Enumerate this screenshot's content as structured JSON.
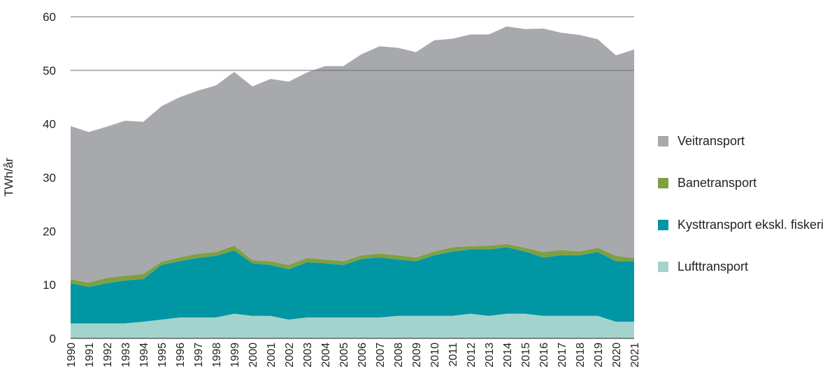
{
  "chart_data": {
    "type": "area",
    "stacked": true,
    "title": "",
    "xlabel": "",
    "ylabel": "TWh/år",
    "ylim": [
      0,
      60
    ],
    "yticks": [
      0,
      10,
      20,
      30,
      40,
      50,
      60
    ],
    "grid": "horizontal at 50 and 60 above the areas",
    "legend_position": "right",
    "x": [
      "1990",
      "1991",
      "1992",
      "1993",
      "1994",
      "1995",
      "1996",
      "1997",
      "1998",
      "1999",
      "2000",
      "2001",
      "2002",
      "2003",
      "2004",
      "2005",
      "2006",
      "2007",
      "2008",
      "2009",
      "2010",
      "2011",
      "2012",
      "2013",
      "2014",
      "2015",
      "2016",
      "2017",
      "2018",
      "2019",
      "2020",
      "2021"
    ],
    "series": [
      {
        "name": "Lufttransport",
        "color": "#a3d3cd",
        "values": [
          2.8,
          2.8,
          2.8,
          2.8,
          3.1,
          3.5,
          3.9,
          3.9,
          3.9,
          4.6,
          4.2,
          4.2,
          3.5,
          3.9,
          3.9,
          3.9,
          3.9,
          3.9,
          4.2,
          4.2,
          4.2,
          4.2,
          4.6,
          4.2,
          4.6,
          4.6,
          4.2,
          4.2,
          4.2,
          4.2,
          3.1,
          3.1
        ]
      },
      {
        "name": "Kysttransport ekskl. fiskeri",
        "color": "#0096a4",
        "values": [
          7.5,
          6.8,
          7.5,
          8.0,
          8.0,
          10.2,
          10.5,
          11.1,
          11.5,
          11.8,
          9.8,
          9.5,
          9.4,
          10.3,
          10.1,
          9.8,
          10.9,
          11.2,
          10.5,
          10.2,
          11.3,
          12.0,
          12.0,
          12.4,
          12.4,
          11.6,
          10.9,
          11.3,
          11.3,
          11.9,
          11.3,
          11.3
        ]
      },
      {
        "name": "Banetransport",
        "color": "#7fa042",
        "values": [
          0.7,
          0.8,
          1.0,
          0.9,
          0.9,
          0.6,
          0.7,
          0.8,
          0.7,
          0.9,
          0.6,
          0.7,
          0.8,
          0.8,
          0.7,
          0.7,
          0.7,
          0.7,
          0.8,
          0.7,
          0.7,
          0.8,
          0.6,
          0.7,
          0.6,
          0.7,
          1.0,
          1.0,
          0.7,
          0.8,
          1.0,
          0.6
        ]
      },
      {
        "name": "Veitransport",
        "color": "#a7a9ac",
        "values": [
          28.6,
          28.1,
          28.2,
          28.9,
          28.4,
          29.0,
          29.9,
          30.4,
          31.1,
          32.4,
          32.4,
          34.0,
          34.2,
          34.6,
          36.1,
          36.4,
          37.5,
          38.7,
          38.7,
          38.3,
          39.4,
          38.9,
          39.5,
          39.4,
          40.6,
          40.8,
          41.7,
          40.5,
          40.4,
          38.9,
          37.4,
          38.9
        ]
      }
    ]
  }
}
